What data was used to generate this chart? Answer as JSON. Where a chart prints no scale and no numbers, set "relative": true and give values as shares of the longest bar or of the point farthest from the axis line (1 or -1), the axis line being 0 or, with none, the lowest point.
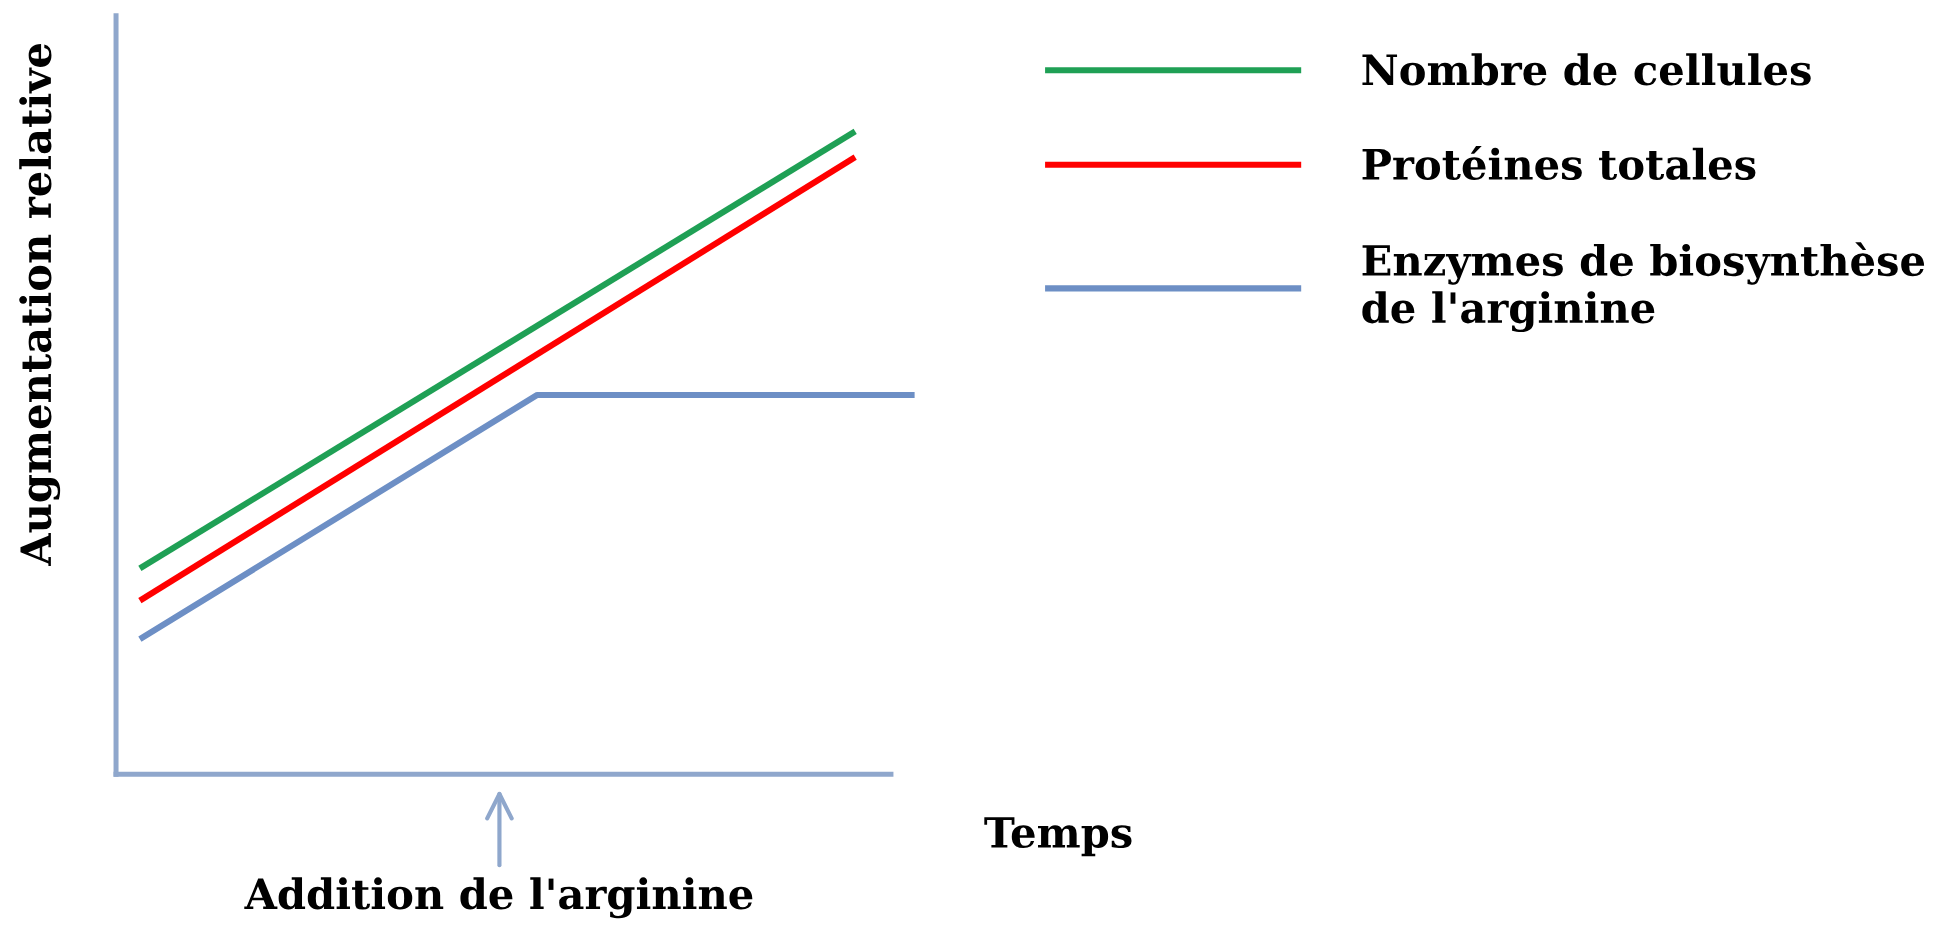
{
  "chart_data": {
    "type": "line",
    "relative": true,
    "xlabel": "Temps",
    "ylabel": "Augmentation relative",
    "legend": "right",
    "marker": "none",
    "line_style": "solid",
    "categories": [
      null,
      null,
      null,
      null,
      null,
      null,
      null,
      null,
      null,
      null,
      null,
      null,
      null,
      null,
      null,
      null,
      null,
      null,
      null,
      null,
      null,
      null,
      null,
      null,
      null,
      null,
      null,
      null,
      null,
      null,
      null,
      null,
      null,
      null,
      null,
      null,
      null,
      null,
      null,
      null
    ],
    "annotations": [
      "Addition de l'arginine"
    ],
    "series": [
      {
        "name": "Nombre de cellules",
        "color": "#1fa055",
        "values": [
          0.32,
          null,
          null,
          null,
          null,
          null,
          null,
          null,
          null,
          null,
          null,
          null,
          null,
          null,
          null,
          null,
          null,
          null,
          null,
          null,
          null,
          null,
          null,
          null,
          null,
          null,
          null,
          null,
          null,
          null,
          null,
          null,
          null,
          null,
          null,
          null,
          1,
          null,
          null,
          null
        ]
      },
      {
        "name": "Protéines totales",
        "color": "#ff0000",
        "values": [
          0.27,
          null,
          null,
          null,
          null,
          null,
          null,
          null,
          null,
          null,
          null,
          null,
          null,
          null,
          null,
          null,
          null,
          null,
          null,
          null,
          null,
          null,
          null,
          null,
          null,
          null,
          null,
          null,
          null,
          null,
          null,
          null,
          null,
          null,
          null,
          null,
          0.96,
          null,
          null,
          null
        ]
      },
      {
        "name": "Enzymes de biosynthèse\nde l'arginine",
        "color": "#6d8fc5",
        "values": [
          0.21,
          null,
          null,
          null,
          null,
          null,
          null,
          null,
          null,
          null,
          null,
          null,
          null,
          null,
          null,
          null,
          null,
          null,
          null,
          null,
          0.59,
          null,
          null,
          null,
          null,
          null,
          null,
          null,
          null,
          null,
          null,
          null,
          null,
          null,
          null,
          null,
          null,
          null,
          null,
          0.59
        ]
      }
    ]
  }
}
